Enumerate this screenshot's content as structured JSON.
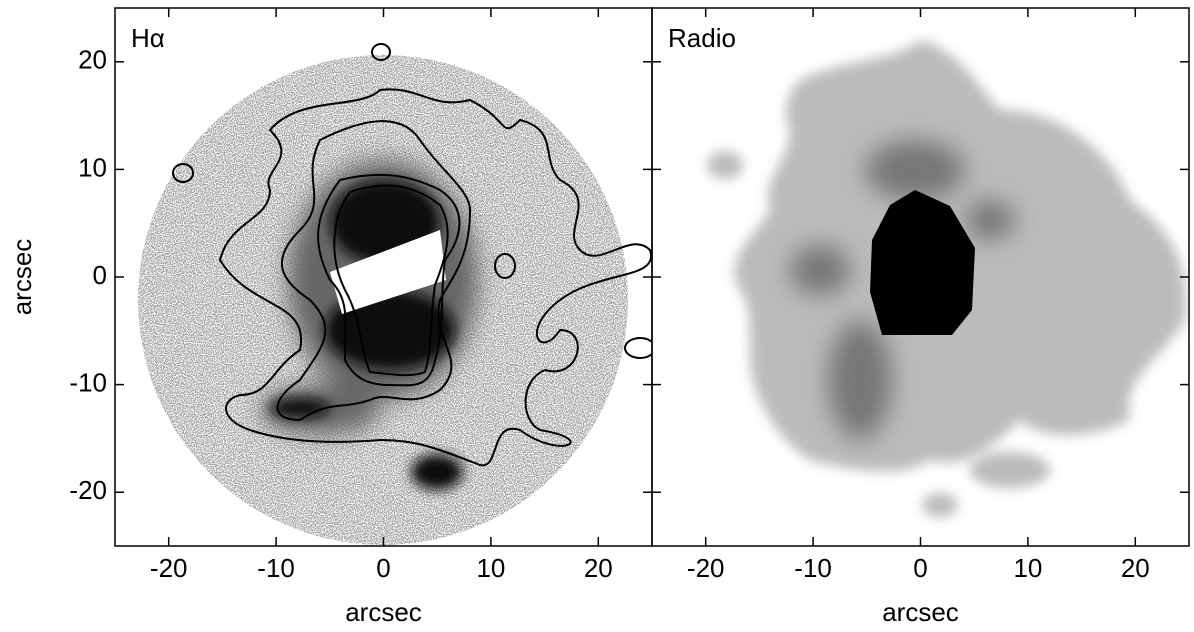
{
  "chart_data": [
    {
      "type": "image",
      "title": "Hα",
      "xlabel": "arcsec",
      "ylabel": "arcsec",
      "xlim": [
        -25,
        25
      ],
      "ylim": [
        -25,
        25
      ],
      "xticks": [
        -20,
        -10,
        0,
        10,
        20
      ],
      "yticks": [
        -20,
        -10,
        0,
        10,
        20
      ]
    },
    {
      "type": "image",
      "title": "Radio",
      "xlabel": "arcsec",
      "xlim": [
        -25,
        25
      ],
      "ylim": [
        -25,
        25
      ],
      "xticks": [
        -20,
        -10,
        0,
        10,
        20
      ],
      "yticks": [
        -20,
        -10,
        0,
        10,
        20
      ]
    }
  ]
}
